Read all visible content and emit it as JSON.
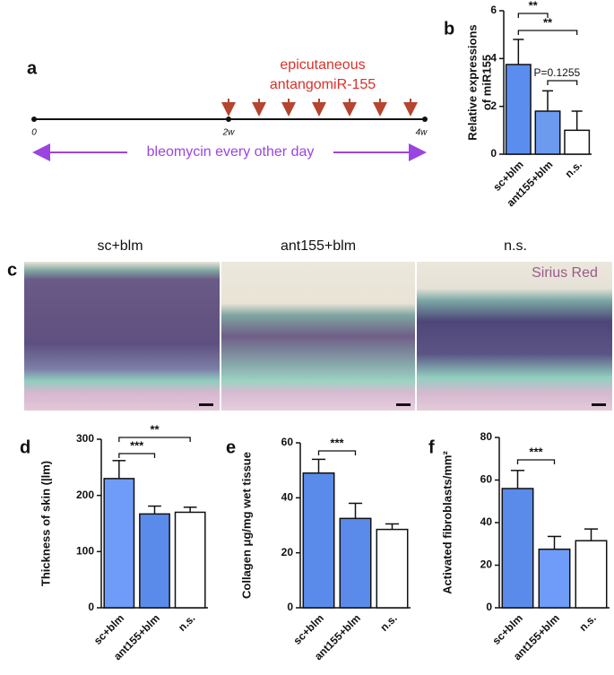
{
  "timeline": {
    "label": "a",
    "treatment": [
      "epicutaneous",
      "antangomiR-155"
    ],
    "ticks": [
      "0",
      "2w",
      "4w"
    ],
    "bleomycin": "bleomycin every other day"
  },
  "histology": {
    "label": "c",
    "titles": [
      "sc+blm",
      "ant155+blm",
      "n.s."
    ],
    "stain": "Sirius Red"
  },
  "chart_data": [
    {
      "type": "bar",
      "panel": "b",
      "ylabel": [
        "Relative expressions",
        "of miR155"
      ],
      "categories": [
        "sc+blm",
        "ant155+blm",
        "n.s."
      ],
      "values": [
        3.75,
        1.8,
        1.0
      ],
      "errors": [
        1.05,
        0.85,
        0.8
      ],
      "colors": [
        "#5b8def",
        "#6c9aef",
        "#ffffff"
      ],
      "ylim": [
        0,
        6
      ],
      "yticks": [
        0,
        2,
        4,
        6
      ],
      "annotations": [
        "**",
        "**",
        "P=0.1255"
      ]
    },
    {
      "type": "bar",
      "panel": "d",
      "ylabel": [
        "Thickness of skin (|lm)"
      ],
      "categories": [
        "sc+blm",
        "ant155+blm",
        "n.s."
      ],
      "values": [
        230,
        167,
        170
      ],
      "errors": [
        32,
        14,
        9
      ],
      "colors": [
        "#6f9cf8",
        "#5b8bea",
        "#ffffff"
      ],
      "ylim": [
        0,
        300
      ],
      "yticks": [
        0,
        100,
        200,
        300
      ],
      "annotations": [
        "***",
        "**"
      ]
    },
    {
      "type": "bar",
      "panel": "e",
      "ylabel": [
        "Collagen μg/mg wet tissue"
      ],
      "categories": [
        "sc+blm",
        "ant155+blm",
        "n.s."
      ],
      "values": [
        49,
        32.5,
        28.5
      ],
      "errors": [
        5,
        5.5,
        2
      ],
      "colors": [
        "#5b8bea",
        "#5b8bea",
        "#ffffff"
      ],
      "ylim": [
        0,
        60
      ],
      "yticks": [
        0,
        20,
        40,
        60
      ],
      "annotations": [
        "***"
      ]
    },
    {
      "type": "bar",
      "panel": "f",
      "ylabel": [
        "Activated fibroblasts/mm²"
      ],
      "categories": [
        "sc+blm",
        "ant155+blm",
        "n.s."
      ],
      "values": [
        56,
        27.5,
        31.5
      ],
      "errors": [
        8.5,
        6,
        5.5
      ],
      "colors": [
        "#5b8bea",
        "#6f9cf8",
        "#ffffff"
      ],
      "ylim": [
        0,
        80
      ],
      "yticks": [
        0,
        20,
        40,
        60,
        80
      ],
      "annotations": [
        "***"
      ]
    }
  ]
}
